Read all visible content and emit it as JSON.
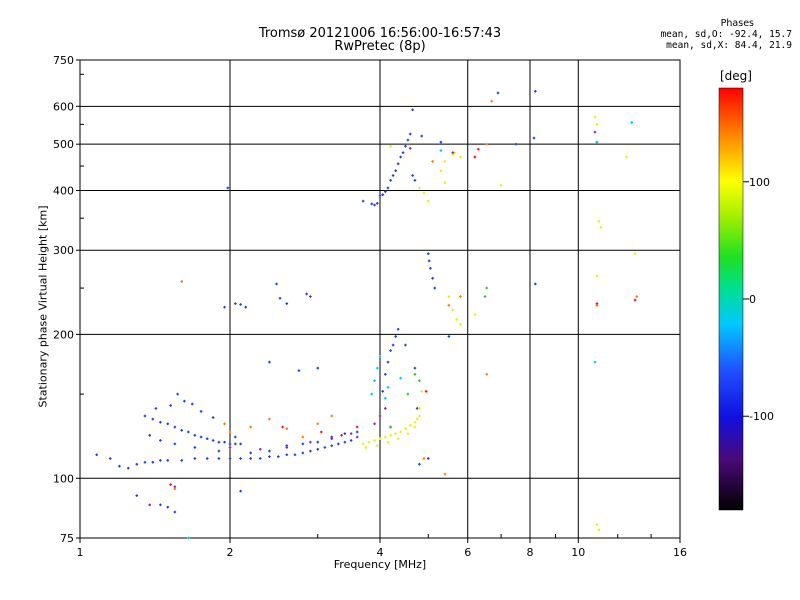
{
  "chart_data": {
    "type": "scatter",
    "title": "Tromsø 20121006 16:56:00-16:57:43",
    "subtitle": "RwPretec (8p)",
    "stats": {
      "header": "Phases",
      "line_o": "mean, sd,O: -92.4, 15.7",
      "line_x": "mean, sd,X:  84.4, 21.9"
    },
    "xlabel": "Frequency [MHz]",
    "ylabel": "Stationary phase Virtual Height [km]",
    "x_scale": "log",
    "y_scale": "log",
    "xlim": [
      1,
      16
    ],
    "ylim": [
      75,
      750
    ],
    "x_ticks": [
      1,
      2,
      4,
      6,
      8,
      10,
      16
    ],
    "x_tick_labels": [
      "1",
      "2",
      "4",
      "6",
      "8",
      "10",
      "16"
    ],
    "y_ticks": [
      75,
      100,
      200,
      300,
      400,
      500,
      600,
      750
    ],
    "y_tick_labels": [
      "75",
      "100",
      "200",
      "300",
      "400",
      "500",
      "600",
      "750"
    ],
    "grid": true,
    "colorbar": {
      "label": "[deg]",
      "range": [
        -180,
        180
      ],
      "ticks": [
        -100,
        0,
        100
      ],
      "tick_labels": [
        "-100",
        "0",
        "100"
      ]
    },
    "series": [
      {
        "color": "#1f3fe0",
        "points": [
          [
            1.08,
            112
          ],
          [
            1.15,
            110
          ],
          [
            1.2,
            106
          ],
          [
            1.25,
            105
          ],
          [
            1.3,
            107
          ],
          [
            1.35,
            108
          ],
          [
            1.4,
            108
          ],
          [
            1.45,
            109
          ],
          [
            1.5,
            109
          ],
          [
            1.6,
            109
          ],
          [
            1.7,
            110
          ],
          [
            1.8,
            110
          ],
          [
            1.9,
            110
          ],
          [
            2.0,
            110
          ],
          [
            2.1,
            110
          ],
          [
            2.2,
            110
          ],
          [
            2.3,
            110
          ],
          [
            2.4,
            111
          ],
          [
            2.5,
            111
          ],
          [
            2.6,
            112
          ],
          [
            2.7,
            112
          ],
          [
            2.8,
            113
          ],
          [
            2.9,
            114
          ],
          [
            3.0,
            115
          ],
          [
            3.1,
            116
          ],
          [
            3.2,
            117
          ],
          [
            3.3,
            118
          ],
          [
            3.4,
            119
          ],
          [
            3.5,
            120
          ],
          [
            1.35,
            135
          ],
          [
            1.4,
            133
          ],
          [
            1.45,
            131
          ],
          [
            1.5,
            130
          ],
          [
            1.55,
            128
          ],
          [
            1.6,
            126
          ],
          [
            1.65,
            125
          ],
          [
            1.7,
            123
          ],
          [
            1.75,
            122
          ],
          [
            1.8,
            121
          ],
          [
            1.85,
            120
          ],
          [
            1.9,
            119
          ],
          [
            1.95,
            119
          ],
          [
            2.0,
            118
          ],
          [
            2.05,
            118
          ],
          [
            2.1,
            118
          ],
          [
            1.38,
            123
          ],
          [
            1.45,
            120
          ],
          [
            1.55,
            118
          ],
          [
            1.7,
            116
          ],
          [
            1.9,
            114
          ],
          [
            2.2,
            113
          ],
          [
            2.4,
            114
          ],
          [
            2.6,
            117
          ],
          [
            2.8,
            118
          ],
          [
            3.0,
            119
          ],
          [
            3.2,
            122
          ],
          [
            3.4,
            124
          ],
          [
            3.6,
            125
          ],
          [
            1.42,
            140
          ],
          [
            1.52,
            142
          ],
          [
            1.62,
            145
          ],
          [
            1.75,
            138
          ],
          [
            1.85,
            134
          ],
          [
            1.57,
            150
          ],
          [
            1.68,
            143
          ],
          [
            2.05,
            122
          ],
          [
            1.95,
            228
          ],
          [
            2.05,
            232
          ],
          [
            2.1,
            231
          ],
          [
            2.15,
            228
          ],
          [
            2.48,
            255
          ],
          [
            2.52,
            238
          ],
          [
            2.6,
            232
          ],
          [
            2.85,
            243
          ],
          [
            2.9,
            240
          ],
          [
            1.98,
            405
          ],
          [
            2.4,
            175
          ],
          [
            2.75,
            168
          ],
          [
            3.0,
            170
          ],
          [
            3.85,
            375
          ],
          [
            3.9,
            373
          ],
          [
            3.95,
            376
          ],
          [
            4.0,
            390
          ],
          [
            4.05,
            392
          ],
          [
            4.1,
            398
          ],
          [
            4.15,
            405
          ],
          [
            4.2,
            420
          ],
          [
            4.25,
            430
          ],
          [
            4.3,
            440
          ],
          [
            4.35,
            455
          ],
          [
            4.4,
            470
          ],
          [
            4.45,
            480
          ],
          [
            4.5,
            495
          ],
          [
            4.55,
            510
          ],
          [
            4.6,
            525
          ],
          [
            4.65,
            430
          ],
          [
            4.7,
            420
          ],
          [
            3.7,
            380
          ],
          [
            4.05,
            152
          ],
          [
            4.1,
            165
          ],
          [
            4.15,
            175
          ],
          [
            4.2,
            185
          ],
          [
            4.25,
            190
          ],
          [
            4.3,
            198
          ],
          [
            4.35,
            205
          ],
          [
            4.5,
            190
          ],
          [
            4.7,
            170
          ],
          [
            4.75,
            140
          ],
          [
            5.0,
            295
          ],
          [
            5.02,
            285
          ],
          [
            5.05,
            275
          ],
          [
            5.1,
            262
          ],
          [
            5.15,
            250
          ],
          [
            5.5,
            198
          ],
          [
            4.65,
            590
          ],
          [
            4.85,
            520
          ],
          [
            5.3,
            505
          ],
          [
            6.9,
            640
          ],
          [
            8.2,
            645
          ],
          [
            8.15,
            515
          ],
          [
            7.5,
            500
          ],
          [
            1.3,
            92
          ],
          [
            1.45,
            88
          ],
          [
            1.5,
            87
          ],
          [
            1.55,
            85
          ],
          [
            2.1,
            94
          ],
          [
            5.0,
            110
          ],
          [
            4.8,
            107
          ],
          [
            8.2,
            255
          ]
        ]
      },
      {
        "color": "#e8f000",
        "points": [
          [
            3.7,
            118
          ],
          [
            3.8,
            119
          ],
          [
            3.9,
            120
          ],
          [
            4.0,
            121
          ],
          [
            4.1,
            122
          ],
          [
            4.2,
            123
          ],
          [
            4.3,
            124
          ],
          [
            4.4,
            125
          ],
          [
            4.5,
            127
          ],
          [
            4.6,
            129
          ],
          [
            4.7,
            131
          ],
          [
            4.75,
            133
          ],
          [
            4.8,
            135
          ],
          [
            3.75,
            116
          ],
          [
            3.95,
            117
          ],
          [
            4.15,
            119
          ],
          [
            4.35,
            121
          ],
          [
            4.55,
            124
          ],
          [
            4.7,
            128
          ],
          [
            4.8,
            140
          ],
          [
            4.85,
            152
          ],
          [
            4.8,
            405
          ],
          [
            4.9,
            395
          ],
          [
            5.0,
            380
          ],
          [
            5.3,
            440
          ],
          [
            5.4,
            460
          ],
          [
            5.6,
            475
          ],
          [
            5.65,
            480
          ],
          [
            5.8,
            470
          ],
          [
            5.5,
            240
          ],
          [
            5.6,
            225
          ],
          [
            5.7,
            215
          ],
          [
            5.8,
            210
          ],
          [
            6.2,
            220
          ],
          [
            7.0,
            410
          ],
          [
            10.8,
            570
          ],
          [
            10.9,
            550
          ],
          [
            12.5,
            470
          ],
          [
            11.0,
            345
          ],
          [
            11.1,
            335
          ],
          [
            10.9,
            265
          ],
          [
            13.0,
            295
          ],
          [
            10.9,
            80
          ],
          [
            11.0,
            78
          ],
          [
            4.2,
            495
          ],
          [
            5.4,
            415
          ]
        ]
      },
      {
        "color": "#ff7a00",
        "points": [
          [
            1.95,
            130
          ],
          [
            2.0,
            125
          ],
          [
            2.2,
            128
          ],
          [
            2.4,
            133
          ],
          [
            2.6,
            127
          ],
          [
            2.8,
            122
          ],
          [
            3.0,
            130
          ],
          [
            3.2,
            135
          ],
          [
            6.7,
            615
          ],
          [
            6.55,
            500
          ],
          [
            6.2,
            470
          ],
          [
            6.55,
            165
          ],
          [
            5.1,
            460
          ],
          [
            5.5,
            230
          ],
          [
            5.8,
            240
          ],
          [
            13.1,
            240
          ],
          [
            10.9,
            230
          ],
          [
            1.55,
            95
          ],
          [
            1.6,
            258
          ],
          [
            5.4,
            102
          ],
          [
            4.9,
            110
          ]
        ]
      },
      {
        "color": "#8a20d0",
        "points": [
          [
            2.0,
            116
          ],
          [
            2.3,
            115
          ],
          [
            2.6,
            116
          ],
          [
            2.9,
            119
          ],
          [
            3.2,
            121
          ],
          [
            3.5,
            124
          ],
          [
            3.6,
            122
          ],
          [
            3.9,
            130
          ],
          [
            4.0,
            135
          ],
          [
            4.1,
            140
          ],
          [
            4.2,
            128
          ],
          [
            10.8,
            530
          ],
          [
            10.9,
            505
          ],
          [
            1.38,
            88
          ],
          [
            1.55,
            96
          ],
          [
            4.6,
            490
          ],
          [
            5.6,
            480
          ]
        ]
      },
      {
        "color": "#00c8e0",
        "points": [
          [
            3.85,
            150
          ],
          [
            3.9,
            160
          ],
          [
            3.95,
            170
          ],
          [
            4.0,
            180
          ],
          [
            4.1,
            147
          ],
          [
            4.15,
            155
          ],
          [
            4.4,
            162
          ],
          [
            12.8,
            555
          ],
          [
            10.9,
            505
          ],
          [
            10.8,
            175
          ],
          [
            1.65,
            75
          ],
          [
            5.3,
            485
          ]
        ]
      },
      {
        "color": "#30c020",
        "points": [
          [
            4.7,
            165
          ],
          [
            4.8,
            160
          ],
          [
            4.55,
            150
          ],
          [
            6.55,
            250
          ],
          [
            6.5,
            240
          ],
          [
            4.2,
            128
          ]
        ]
      },
      {
        "color": "#ff1010",
        "points": [
          [
            2.55,
            128
          ],
          [
            3.05,
            125
          ],
          [
            3.35,
            123
          ],
          [
            3.6,
            128
          ],
          [
            6.2,
            470
          ],
          [
            6.3,
            488
          ],
          [
            10.9,
            232
          ],
          [
            13.0,
            236
          ],
          [
            1.52,
            97
          ],
          [
            4.95,
            152
          ]
        ]
      }
    ]
  }
}
